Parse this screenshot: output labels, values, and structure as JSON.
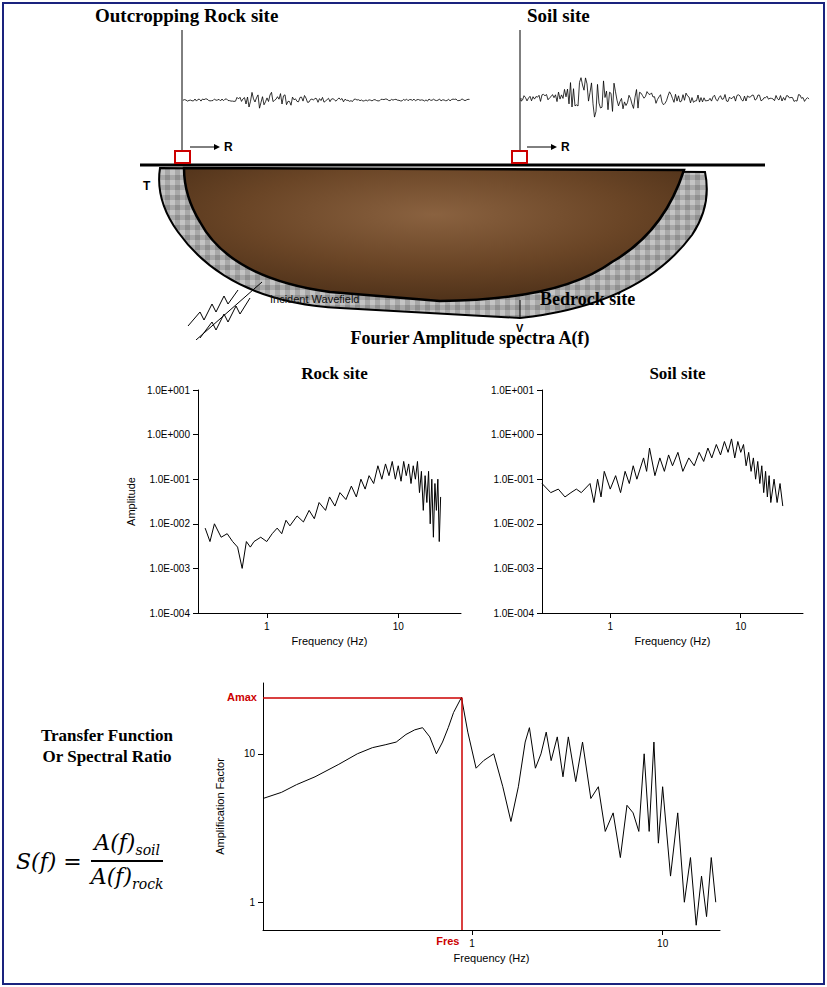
{
  "diagram": {
    "rock_site_label": "Outcropping Rock site",
    "soil_site_label": "Soil site",
    "bedrock_label": "Bedrock site",
    "incident_label": "Incident Wavefield",
    "rock_component": "R",
    "soil_component": "R",
    "transverse_component": "T",
    "vertical_component": "V",
    "spectra_heading": "Fourier Amplitude spectra A(f)",
    "transfer_heading": [
      "Transfer Function",
      "Or Spectral Ratio"
    ],
    "formula": {
      "lhs": "S(f) =",
      "numerator": "A(f)",
      "numerator_sub": "soil",
      "denominator": "A(f)",
      "denominator_sub": "rock"
    }
  },
  "chart_data": [
    {
      "type": "line",
      "title": "Rock site",
      "x_label": "Frequency (Hz)",
      "y_label": "Amplitude",
      "log": true,
      "grid": false,
      "color": "#000000",
      "xlim": [
        0.3,
        30
      ],
      "ylim": [
        0.0001,
        10
      ],
      "xticks": [
        1,
        10
      ],
      "yticks": [
        {
          "value": 0.0001,
          "label": "1.0E-004"
        },
        {
          "value": 0.001,
          "label": "1.0E-003"
        },
        {
          "value": 0.01,
          "label": "1.0E-002"
        },
        {
          "value": 0.1,
          "label": "1.0E-001"
        },
        {
          "value": 1,
          "label": "1.0E+000"
        },
        {
          "value": 10,
          "label": "1.0E+001"
        }
      ],
      "x": [
        0.34,
        0.37,
        0.4,
        0.45,
        0.5,
        0.55,
        0.6,
        0.65,
        0.7,
        0.75,
        0.8,
        0.9,
        1.0,
        1.1,
        1.2,
        1.3,
        1.4,
        1.5,
        1.7,
        1.9,
        2.1,
        2.3,
        2.5,
        2.8,
        3.0,
        3.3,
        3.6,
        4.0,
        4.4,
        4.8,
        5.2,
        5.6,
        6.0,
        6.5,
        7.0,
        7.5,
        8.0,
        8.5,
        9.0,
        9.5,
        10,
        10.5,
        11,
        11.5,
        12,
        12.5,
        13,
        13.5,
        14,
        14.5,
        15,
        15.5,
        16,
        16.5,
        17,
        17.5,
        18,
        18.5,
        19,
        19.5,
        20,
        20.5,
        21
      ],
      "values": [
        0.008,
        0.004,
        0.01,
        0.005,
        0.006,
        0.004,
        0.003,
        0.001,
        0.004,
        0.003,
        0.004,
        0.005,
        0.004,
        0.006,
        0.008,
        0.006,
        0.012,
        0.009,
        0.015,
        0.011,
        0.02,
        0.013,
        0.03,
        0.02,
        0.04,
        0.025,
        0.05,
        0.035,
        0.07,
        0.04,
        0.1,
        0.06,
        0.12,
        0.08,
        0.2,
        0.1,
        0.22,
        0.12,
        0.25,
        0.1,
        0.2,
        0.09,
        0.25,
        0.12,
        0.22,
        0.08,
        0.2,
        0.1,
        0.25,
        0.05,
        0.15,
        0.02,
        0.12,
        0.03,
        0.15,
        0.01,
        0.1,
        0.005,
        0.08,
        0.02,
        0.1,
        0.004,
        0.04
      ]
    },
    {
      "type": "line",
      "title": "Soil site",
      "x_label": "Frequency (Hz)",
      "log": true,
      "grid": false,
      "color": "#000000",
      "xlim": [
        0.3,
        30
      ],
      "ylim": [
        0.0001,
        10
      ],
      "xticks": [
        1,
        10
      ],
      "yticks": [
        {
          "value": 0.0001,
          "label": "1.0E-004"
        },
        {
          "value": 0.001,
          "label": "1.0E-003"
        },
        {
          "value": 0.01,
          "label": "1.0E-002"
        },
        {
          "value": 0.1,
          "label": "1.0E-001"
        },
        {
          "value": 1,
          "label": "1.0E+000"
        },
        {
          "value": 10,
          "label": "1.0E+001"
        }
      ],
      "x": [
        0.3,
        0.35,
        0.4,
        0.45,
        0.5,
        0.55,
        0.6,
        0.7,
        0.75,
        0.8,
        0.85,
        0.9,
        1.0,
        1.1,
        1.2,
        1.3,
        1.4,
        1.5,
        1.6,
        1.8,
        1.9,
        2.0,
        2.2,
        2.4,
        2.6,
        2.8,
        3.0,
        3.3,
        3.6,
        4.0,
        4.4,
        4.8,
        5.2,
        5.6,
        6.0,
        6.5,
        7.0,
        7.5,
        8.0,
        8.5,
        9.0,
        9.5,
        10,
        10.5,
        11,
        11.5,
        12,
        12.5,
        13,
        13.5,
        14,
        14.5,
        15,
        15.5,
        16,
        16.5,
        17,
        18,
        19,
        20,
        21
      ],
      "values": [
        0.08,
        0.05,
        0.06,
        0.04,
        0.05,
        0.06,
        0.05,
        0.08,
        0.03,
        0.1,
        0.04,
        0.15,
        0.06,
        0.12,
        0.05,
        0.15,
        0.08,
        0.2,
        0.1,
        0.3,
        0.15,
        0.5,
        0.12,
        0.3,
        0.15,
        0.35,
        0.2,
        0.4,
        0.15,
        0.3,
        0.2,
        0.4,
        0.25,
        0.5,
        0.3,
        0.6,
        0.35,
        0.7,
        0.4,
        0.8,
        0.3,
        0.7,
        0.4,
        0.6,
        0.2,
        0.4,
        0.15,
        0.3,
        0.1,
        0.25,
        0.08,
        0.2,
        0.05,
        0.15,
        0.04,
        0.12,
        0.03,
        0.1,
        0.03,
        0.08,
        0.025
      ]
    },
    {
      "type": "line",
      "x_label": "Frequency (Hz)",
      "y_label": "Amplification Factor",
      "log": true,
      "grid": false,
      "color": "#000000",
      "xlim": [
        0.08,
        20
      ],
      "ylim": [
        0.65,
        30
      ],
      "xticks": [
        1,
        10
      ],
      "yticks": [
        1,
        10
      ],
      "x": [
        0.08,
        0.1,
        0.12,
        0.15,
        0.2,
        0.25,
        0.3,
        0.35,
        0.4,
        0.45,
        0.5,
        0.55,
        0.6,
        0.65,
        0.7,
        0.75,
        0.8,
        0.88,
        0.95,
        1.05,
        1.15,
        1.3,
        1.45,
        1.6,
        1.75,
        1.9,
        2.0,
        2.15,
        2.3,
        2.45,
        2.6,
        2.8,
        3.0,
        3.2,
        3.5,
        3.8,
        4.2,
        4.6,
        5.0,
        5.5,
        6.0,
        6.5,
        7.0,
        7.5,
        8.0,
        8.5,
        9.0,
        9.5,
        10,
        11,
        12,
        13,
        14,
        15,
        16,
        17,
        18,
        19
      ],
      "values": [
        5,
        5.5,
        6.2,
        7,
        8.5,
        10,
        11,
        11.5,
        12,
        13.5,
        14.5,
        15,
        13,
        10,
        12,
        15,
        19,
        24,
        14,
        8,
        9,
        10,
        6,
        3.5,
        6,
        12,
        15,
        8,
        10,
        14,
        9,
        13,
        7,
        13,
        6.5,
        12,
        5,
        6,
        3,
        4,
        2,
        4.5,
        4,
        3,
        10,
        3,
        12,
        2.5,
        6,
        1.5,
        4,
        1,
        2,
        0.7,
        1.5,
        0.8,
        2,
        1
      ],
      "annotations": [
        {
          "label": "Amax",
          "y": 24,
          "color": "#cc0000"
        },
        {
          "label": "Fres",
          "x": 0.88,
          "color": "#cc0000"
        }
      ]
    }
  ]
}
